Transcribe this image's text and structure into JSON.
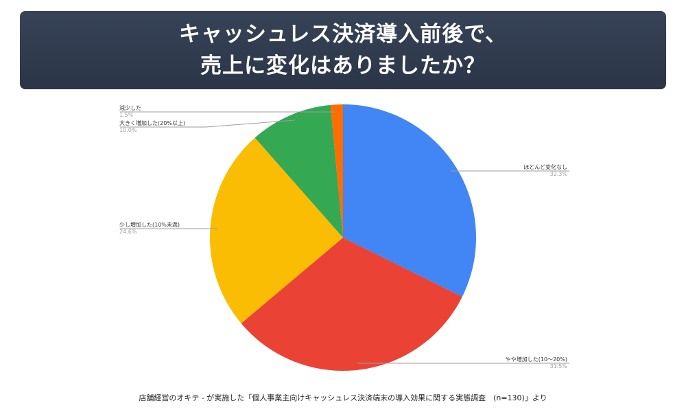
{
  "header": {
    "title_line1": "キャッシュレス決済導入前後で、",
    "title_line2": "売上に変化はありましたか？",
    "background": "#2f3a4c"
  },
  "chart_data": {
    "type": "pie",
    "title": "キャッシュレス決済導入前後で、売上に変化はありましたか？",
    "start_angle": "12 o'clock, clockwise",
    "slices": [
      {
        "label": "ほとんど変化なし",
        "value": 32.3,
        "display": "32.3%",
        "color": "#4285f4"
      },
      {
        "label": "やや増加した(10～20%)",
        "value": 31.5,
        "display": "31.5%",
        "color": "#ea4335"
      },
      {
        "label": "少し増加した(10%未満)",
        "value": 24.6,
        "display": "24.6%",
        "color": "#fbbc04"
      },
      {
        "label": "大きく増加した(20%以上)",
        "value": 10.0,
        "display": "10.0%",
        "color": "#34a853"
      },
      {
        "label": "減少した",
        "value": 1.5,
        "display": "1.5%",
        "color": "#ff6d01"
      }
    ],
    "legend": "leader-line labels",
    "n": 130
  },
  "labels": {
    "no_change": {
      "name": "ほとんど変化なし",
      "pct": "32.3%"
    },
    "slight_increase_10_20": {
      "name": "やや増加した(10～20%)",
      "pct": "31.5%"
    },
    "small_increase_under10": {
      "name": "少し増加した(10%未満)",
      "pct": "24.6%"
    },
    "large_increase_20plus": {
      "name": "大きく増加した(20%以上)",
      "pct": "10.0%"
    },
    "decrease": {
      "name": "減少した",
      "pct": "1.5%"
    }
  },
  "footer": {
    "source": "店舗経営のオキテ - が実施した「個人事業主向けキャッシュレス決済端末の導入効果に関する実態調査　(n=130)」より"
  }
}
